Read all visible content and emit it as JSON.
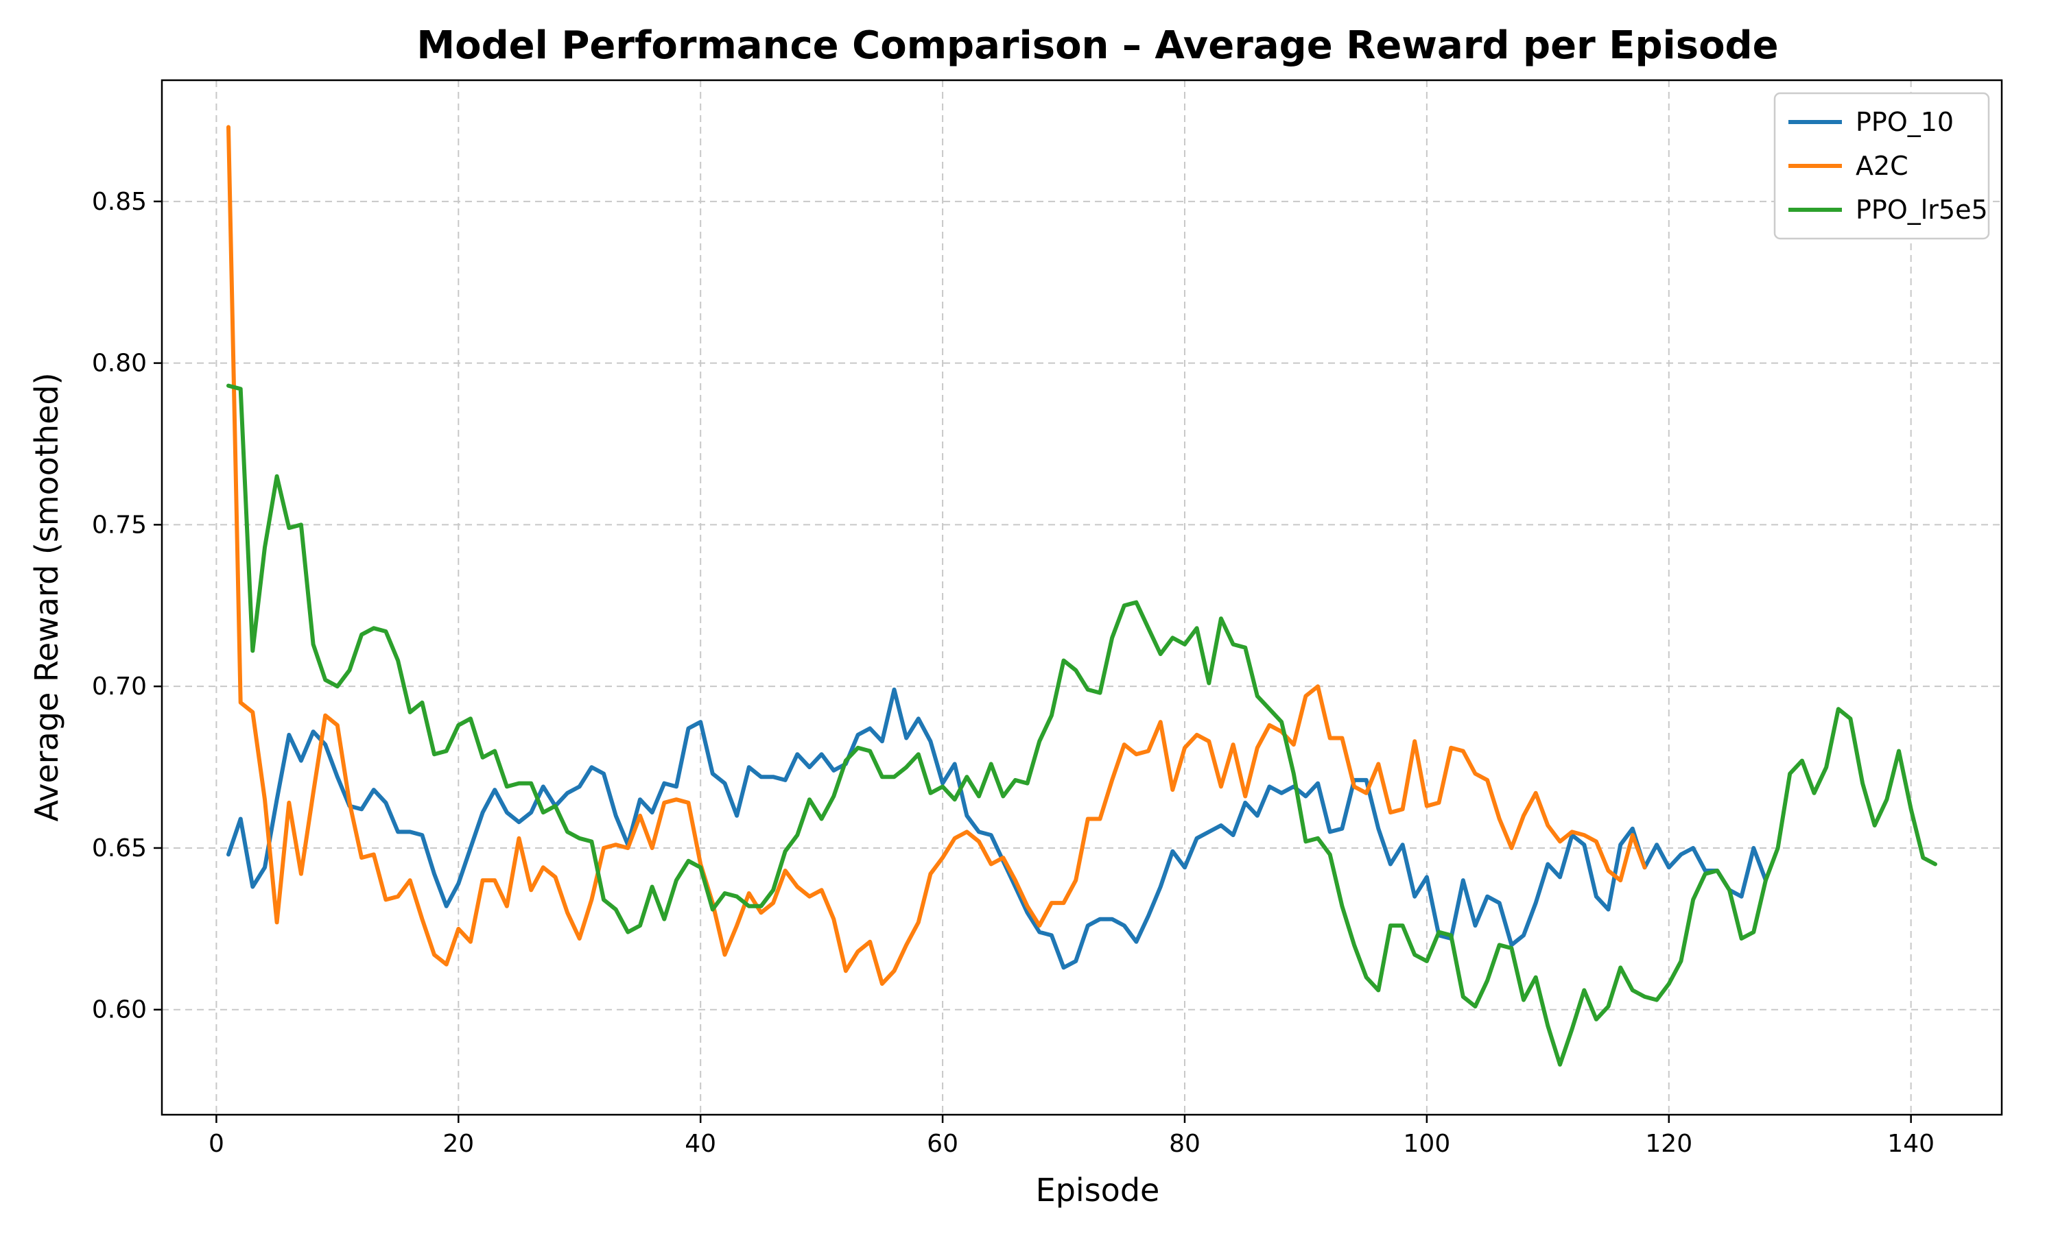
{
  "chart_data": {
    "type": "line",
    "title": "Model Performance Comparison – Average Reward per Episode",
    "xlabel": "Episode",
    "ylabel": "Average Reward (smoothed)",
    "xlim": [
      -4.5,
      147.5
    ],
    "ylim": [
      0.5675,
      0.8875
    ],
    "xticks": [
      0,
      20,
      40,
      60,
      80,
      100,
      120,
      140
    ],
    "yticks": [
      0.6,
      0.65,
      0.7,
      0.75,
      0.8,
      0.85
    ],
    "grid": true,
    "legend_position": "top-right",
    "series": [
      {
        "name": "PPO_10",
        "color": "#1f77b4",
        "x": [
          1,
          2,
          3,
          4,
          5,
          6,
          7,
          8,
          9,
          10,
          11,
          12,
          13,
          14,
          15,
          16,
          17,
          18,
          19,
          20,
          21,
          22,
          23,
          24,
          25,
          26,
          27,
          28,
          29,
          30,
          31,
          32,
          33,
          34,
          35,
          36,
          37,
          38,
          39,
          40,
          41,
          42,
          43,
          44,
          45,
          46,
          47,
          48,
          49,
          50,
          51,
          52,
          53,
          54,
          55,
          56,
          57,
          58,
          59,
          60,
          61,
          62,
          63,
          64,
          65,
          66,
          67,
          68,
          69,
          70,
          71,
          72,
          73,
          74,
          75,
          76,
          77,
          78,
          79,
          80,
          81,
          82,
          83,
          84,
          85,
          86,
          87,
          88,
          89,
          90,
          91,
          92,
          93,
          94,
          95,
          96,
          97,
          98,
          99,
          100,
          101,
          102,
          103,
          104,
          105,
          106,
          107,
          108,
          109,
          110,
          111,
          112,
          113,
          114,
          115,
          116,
          117,
          118,
          119,
          120,
          121,
          122,
          123,
          124,
          125,
          126,
          127,
          128
        ],
        "values": [
          0.648,
          0.659,
          0.638,
          0.644,
          0.665,
          0.685,
          0.677,
          0.686,
          0.682,
          0.672,
          0.663,
          0.662,
          0.668,
          0.664,
          0.655,
          0.655,
          0.654,
          0.642,
          0.632,
          0.639,
          0.65,
          0.661,
          0.668,
          0.661,
          0.658,
          0.661,
          0.669,
          0.663,
          0.667,
          0.669,
          0.675,
          0.673,
          0.66,
          0.651,
          0.665,
          0.661,
          0.67,
          0.669,
          0.687,
          0.689,
          0.673,
          0.67,
          0.66,
          0.675,
          0.672,
          0.672,
          0.671,
          0.679,
          0.675,
          0.679,
          0.674,
          0.676,
          0.685,
          0.687,
          0.683,
          0.699,
          0.684,
          0.69,
          0.683,
          0.67,
          0.676,
          0.66,
          0.655,
          0.654,
          0.646,
          0.638,
          0.63,
          0.624,
          0.623,
          0.613,
          0.615,
          0.626,
          0.628,
          0.628,
          0.626,
          0.621,
          0.629,
          0.638,
          0.649,
          0.644,
          0.653,
          0.655,
          0.657,
          0.654,
          0.664,
          0.66,
          0.669,
          0.667,
          0.669,
          0.666,
          0.67,
          0.655,
          0.656,
          0.671,
          0.671,
          0.656,
          0.645,
          0.651,
          0.635,
          0.641,
          0.623,
          0.622,
          0.64,
          0.626,
          0.635,
          0.633,
          0.62,
          0.623,
          0.633,
          0.645,
          0.641,
          0.654,
          0.651,
          0.635,
          0.631,
          0.651,
          0.656,
          0.644,
          0.651,
          0.644,
          0.648,
          0.65,
          0.643,
          0.643,
          0.637,
          0.635,
          0.65,
          0.64
        ]
      },
      {
        "name": "A2C",
        "color": "#ff7f0e",
        "x": [
          1,
          2,
          3,
          4,
          5,
          6,
          7,
          8,
          9,
          10,
          11,
          12,
          13,
          14,
          15,
          16,
          17,
          18,
          19,
          20,
          21,
          22,
          23,
          24,
          25,
          26,
          27,
          28,
          29,
          30,
          31,
          32,
          33,
          34,
          35,
          36,
          37,
          38,
          39,
          40,
          41,
          42,
          43,
          44,
          45,
          46,
          47,
          48,
          49,
          50,
          51,
          52,
          53,
          54,
          55,
          56,
          57,
          58,
          59,
          60,
          61,
          62,
          63,
          64,
          65,
          66,
          67,
          68,
          69,
          70,
          71,
          72,
          73,
          74,
          75,
          76,
          77,
          78,
          79,
          80,
          81,
          82,
          83,
          84,
          85,
          86,
          87,
          88,
          89,
          90,
          91,
          92,
          93,
          94,
          95,
          96,
          97,
          98,
          99,
          100,
          101,
          102,
          103,
          104,
          105,
          106,
          107,
          108,
          109,
          110,
          111,
          112,
          113,
          114,
          115,
          116,
          117,
          118
        ],
        "values": [
          0.873,
          0.695,
          0.692,
          0.665,
          0.627,
          0.664,
          0.642,
          0.667,
          0.691,
          0.688,
          0.664,
          0.647,
          0.648,
          0.634,
          0.635,
          0.64,
          0.628,
          0.617,
          0.614,
          0.625,
          0.621,
          0.64,
          0.64,
          0.632,
          0.653,
          0.637,
          0.644,
          0.641,
          0.63,
          0.622,
          0.634,
          0.65,
          0.651,
          0.65,
          0.66,
          0.65,
          0.664,
          0.665,
          0.664,
          0.645,
          0.633,
          0.617,
          0.626,
          0.636,
          0.63,
          0.633,
          0.643,
          0.638,
          0.635,
          0.637,
          0.628,
          0.612,
          0.618,
          0.621,
          0.608,
          0.612,
          0.62,
          0.627,
          0.642,
          0.647,
          0.653,
          0.655,
          0.652,
          0.645,
          0.647,
          0.64,
          0.632,
          0.626,
          0.633,
          0.633,
          0.64,
          0.659,
          0.659,
          0.671,
          0.682,
          0.679,
          0.68,
          0.689,
          0.668,
          0.681,
          0.685,
          0.683,
          0.669,
          0.682,
          0.666,
          0.681,
          0.688,
          0.686,
          0.682,
          0.697,
          0.7,
          0.684,
          0.684,
          0.669,
          0.667,
          0.676,
          0.661,
          0.662,
          0.683,
          0.663,
          0.664,
          0.681,
          0.68,
          0.673,
          0.671,
          0.659,
          0.65,
          0.66,
          0.667,
          0.657,
          0.652,
          0.655,
          0.654,
          0.652,
          0.643,
          0.64,
          0.654,
          0.644
        ]
      },
      {
        "name": "PPO_lr5e5",
        "color": "#2ca02c",
        "x": [
          1,
          2,
          3,
          4,
          5,
          6,
          7,
          8,
          9,
          10,
          11,
          12,
          13,
          14,
          15,
          16,
          17,
          18,
          19,
          20,
          21,
          22,
          23,
          24,
          25,
          26,
          27,
          28,
          29,
          30,
          31,
          32,
          33,
          34,
          35,
          36,
          37,
          38,
          39,
          40,
          41,
          42,
          43,
          44,
          45,
          46,
          47,
          48,
          49,
          50,
          51,
          52,
          53,
          54,
          55,
          56,
          57,
          58,
          59,
          60,
          61,
          62,
          63,
          64,
          65,
          66,
          67,
          68,
          69,
          70,
          71,
          72,
          73,
          74,
          75,
          76,
          77,
          78,
          79,
          80,
          81,
          82,
          83,
          84,
          85,
          86,
          87,
          88,
          89,
          90,
          91,
          92,
          93,
          94,
          95,
          96,
          97,
          98,
          99,
          100,
          101,
          102,
          103,
          104,
          105,
          106,
          107,
          108,
          109,
          110,
          111,
          112,
          113,
          114,
          115,
          116,
          117,
          118,
          119,
          120,
          121,
          122,
          123,
          124,
          125,
          126,
          127,
          128,
          129,
          130,
          131,
          132,
          133,
          134,
          135,
          136,
          137,
          138,
          139,
          140,
          141,
          142
        ],
        "values": [
          0.793,
          0.792,
          0.711,
          0.743,
          0.765,
          0.749,
          0.75,
          0.713,
          0.702,
          0.7,
          0.705,
          0.716,
          0.718,
          0.717,
          0.708,
          0.692,
          0.695,
          0.679,
          0.68,
          0.688,
          0.69,
          0.678,
          0.68,
          0.669,
          0.67,
          0.67,
          0.661,
          0.663,
          0.655,
          0.653,
          0.652,
          0.634,
          0.631,
          0.624,
          0.626,
          0.638,
          0.628,
          0.64,
          0.646,
          0.644,
          0.631,
          0.636,
          0.635,
          0.632,
          0.632,
          0.637,
          0.649,
          0.654,
          0.665,
          0.659,
          0.666,
          0.677,
          0.681,
          0.68,
          0.672,
          0.672,
          0.675,
          0.679,
          0.667,
          0.669,
          0.665,
          0.672,
          0.666,
          0.676,
          0.666,
          0.671,
          0.67,
          0.683,
          0.691,
          0.708,
          0.705,
          0.699,
          0.698,
          0.715,
          0.725,
          0.726,
          0.718,
          0.71,
          0.715,
          0.713,
          0.718,
          0.701,
          0.721,
          0.713,
          0.712,
          0.697,
          0.693,
          0.689,
          0.673,
          0.652,
          0.653,
          0.648,
          0.632,
          0.62,
          0.61,
          0.606,
          0.626,
          0.626,
          0.617,
          0.615,
          0.624,
          0.623,
          0.604,
          0.601,
          0.609,
          0.62,
          0.619,
          0.603,
          0.61,
          0.595,
          0.583,
          0.594,
          0.606,
          0.597,
          0.601,
          0.613,
          0.606,
          0.604,
          0.603,
          0.608,
          0.615,
          0.634,
          0.642,
          0.643,
          0.637,
          0.622,
          0.624,
          0.64,
          0.65,
          0.673,
          0.677,
          0.667,
          0.675,
          0.693,
          0.69,
          0.67,
          0.657,
          0.665,
          0.68,
          0.662,
          0.647,
          0.645
        ]
      }
    ]
  }
}
